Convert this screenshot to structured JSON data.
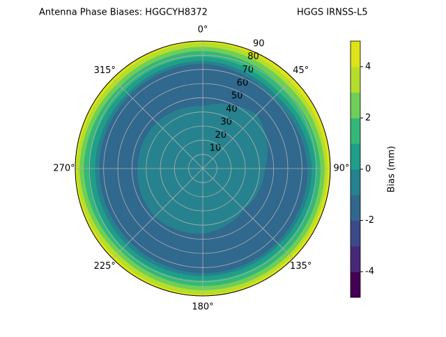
{
  "chart_data": {
    "type": "polar_contour",
    "title": "Antenna Phase Biases: HGGCYH8372",
    "subtitle": "HGGS IRNSS-L5",
    "rlim": [
      0,
      90
    ],
    "rticks": [
      10,
      20,
      30,
      40,
      50,
      60,
      70,
      80,
      90
    ],
    "thetaticks": [
      {
        "value": 0,
        "label": "0°"
      },
      {
        "value": 45,
        "label": "45°"
      },
      {
        "value": 90,
        "label": "90°"
      },
      {
        "value": 135,
        "label": "135°"
      },
      {
        "value": 180,
        "label": "180°"
      },
      {
        "value": 225,
        "label": "225°"
      },
      {
        "value": 270,
        "label": "270°"
      },
      {
        "value": 315,
        "label": "315°"
      }
    ],
    "theta": [
      0,
      45,
      90,
      135,
      180,
      225,
      270,
      315
    ],
    "levels": [
      -5,
      -4,
      -3,
      -2,
      -1,
      0,
      1,
      2,
      3,
      4,
      5
    ],
    "colors": [
      "#440154",
      "#482878",
      "#3e4989",
      "#31688e",
      "#26828e",
      "#1f9e89",
      "#35b779",
      "#6ece58",
      "#b5de2b",
      "#dde318"
    ],
    "regions": [
      {
        "min": 4,
        "max": 5,
        "r": [
          90,
          90,
          90,
          90,
          90,
          90,
          90,
          90
        ]
      },
      {
        "min": 3,
        "max": 4,
        "r": [
          89,
          87,
          88,
          88,
          89,
          88,
          89,
          88
        ]
      },
      {
        "min": 2,
        "max": 3,
        "r": [
          86,
          84,
          86,
          86,
          86,
          85,
          87,
          85
        ]
      },
      {
        "min": 1,
        "max": 2,
        "r": [
          83,
          80,
          83,
          83,
          83,
          82,
          84,
          82
        ]
      },
      {
        "min": 0,
        "max": 1,
        "r": [
          79,
          76,
          80,
          79,
          79,
          79,
          80,
          78
        ]
      },
      {
        "min": -1,
        "max": 0,
        "r": [
          76,
          73,
          77,
          76,
          76,
          76,
          76,
          75
        ]
      },
      {
        "min": -2,
        "max": -1,
        "r": [
          74,
          70,
          74,
          74,
          74,
          73,
          73,
          73
        ]
      },
      {
        "min": -1,
        "max": 0,
        "r": [
          44,
          54,
          44,
          41,
          46,
          48,
          46,
          46
        ]
      }
    ],
    "colorbar_ticks": [
      -4,
      -2,
      0,
      2,
      4
    ],
    "colorbar_label": "Bias (mm)"
  }
}
